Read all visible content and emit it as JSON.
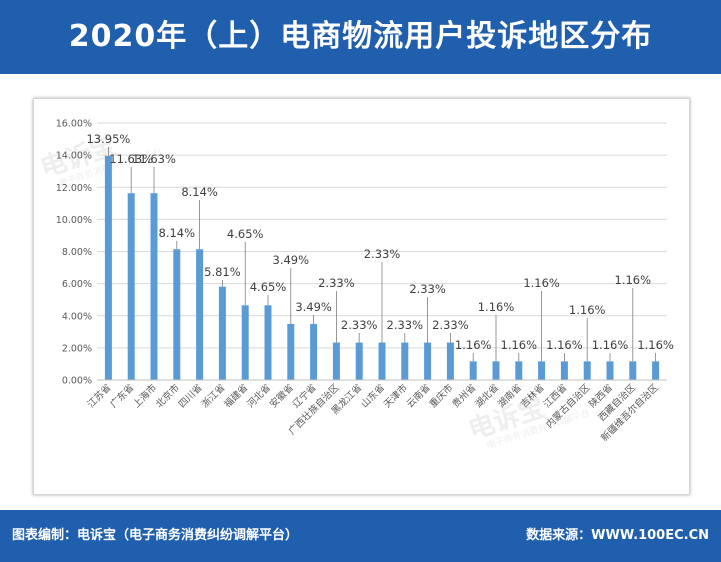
{
  "title": "2020年（上）电商物流用户投诉地区分布",
  "footer": {
    "left": "图表编制：电诉宝（电子商务消费纠纷调解平台）",
    "right": "数据来源：WWW.100EC.CN"
  },
  "watermark": {
    "text": "电诉宝",
    "subtext": "电子商务消费纠纷调解平台"
  },
  "colors": {
    "header": "#1f5fae",
    "bar": "#5b9bd5",
    "grid": "#d9d9d9",
    "axis_text": "#595959",
    "label": "#404040"
  },
  "chart_data": {
    "type": "bar",
    "categories": [
      "江苏省",
      "广东省",
      "上海市",
      "北京市",
      "四川省",
      "浙江省",
      "福建省",
      "河北省",
      "安徽省",
      "辽宁省",
      "广西壮族自治区",
      "黑龙江省",
      "山东省",
      "天津市",
      "云南省",
      "重庆市",
      "贵州省",
      "湖北省",
      "湖南省",
      "吉林省",
      "江西省",
      "内蒙古自治区",
      "陕西省",
      "西藏自治区",
      "新疆维吾尔自治区"
    ],
    "values": [
      13.95,
      11.63,
      11.63,
      8.14,
      8.14,
      5.81,
      4.65,
      4.65,
      3.49,
      3.49,
      2.33,
      2.33,
      2.33,
      2.33,
      2.33,
      2.33,
      1.16,
      1.16,
      1.16,
      1.16,
      1.16,
      1.16,
      1.16,
      1.16,
      1.16
    ],
    "labels": [
      "13.95%",
      "11.63%",
      "11.63%",
      "8.14%",
      "8.14%",
      "5.81%",
      "4.65%",
      "4.65%",
      "3.49%",
      "3.49%",
      "2.33%",
      "2.33%",
      "2.33%",
      "2.33%",
      "2.33%",
      "2.33%",
      "1.16%",
      "1.16%",
      "1.16%",
      "1.16%",
      "1.16%",
      "1.16%",
      "1.16%",
      "1.16%",
      "1.16%"
    ],
    "yticks": [
      "0.00%",
      "2.00%",
      "4.00%",
      "6.00%",
      "8.00%",
      "10.00%",
      "12.00%",
      "14.00%",
      "16.00%"
    ],
    "ylim": [
      0,
      16
    ],
    "grid": true,
    "legend": "none"
  }
}
